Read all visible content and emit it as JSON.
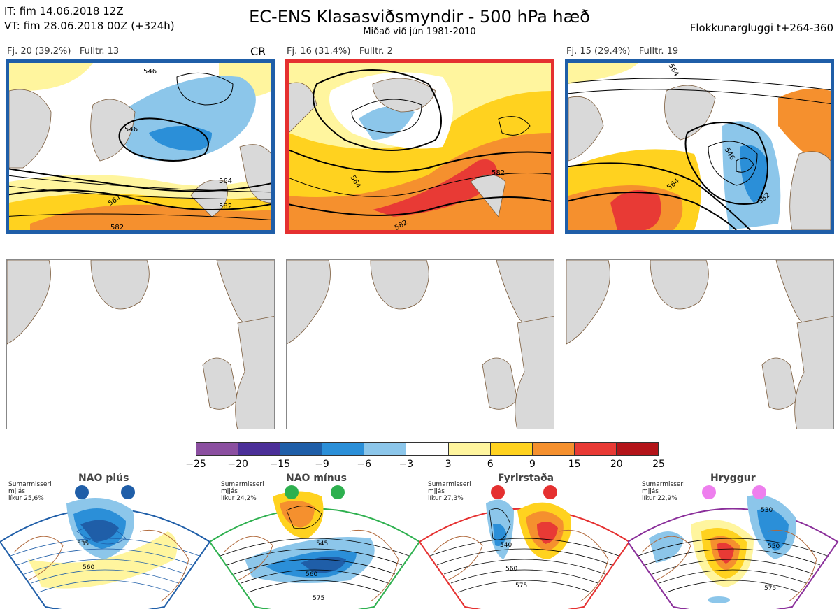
{
  "header": {
    "it_line": "IT: fim 14.06.2018 12Z",
    "vt_line": "VT: fim 28.06.2018 00Z  (+324h)",
    "title": "EC-ENS Klasasviðsmyndir - 500 hPa hæð",
    "subtitle": "Miðað við jún 1981-2010",
    "window": "Flokkunargluggi t+264-360"
  },
  "clusters": [
    {
      "label": "Fj. 20 (39.2%)",
      "rep": "Fulltr. 13",
      "tag": "CR",
      "frame_color": "#1f5ea8",
      "contour_labels": [
        "546",
        "546",
        "564",
        "564",
        "582",
        "582"
      ]
    },
    {
      "label": "Fj. 16 (31.4%)",
      "rep": "Fulltr. 2",
      "tag": "",
      "frame_color": "#e53030",
      "contour_labels": [
        "564",
        "582",
        "582"
      ]
    },
    {
      "label": "Fj. 15 (29.4%)",
      "rep": "Fulltr. 19",
      "tag": "",
      "frame_color": "#1f5ea8",
      "contour_labels": [
        "546",
        "564",
        "564",
        "582"
      ]
    }
  ],
  "colorbar": {
    "colors": [
      "#8b4fa0",
      "#4b2f98",
      "#1f5ea8",
      "#2b8fd8",
      "#8cc6ea",
      "#ffffff",
      "#fff59e",
      "#ffd21f",
      "#f5902e",
      "#e83a35",
      "#b31419"
    ],
    "ticks": [
      "−25",
      "−20",
      "−15",
      "−9",
      "−6",
      "−3",
      "3",
      "6",
      "9",
      "15",
      "20",
      "25"
    ]
  },
  "regimes": [
    {
      "name": "NAO plús",
      "season": "Sumarmisseri",
      "method": "mjjás",
      "prob": "líkur 25,6%",
      "dot_color": "#1f5ea8",
      "frame_color": "#1f5ea8",
      "contour_labels": [
        "535",
        "560"
      ]
    },
    {
      "name": "NAO mínus",
      "season": "Sumarmisseri",
      "method": "mjjás",
      "prob": "líkur 24,2%",
      "dot_color": "#2eb04f",
      "frame_color": "#2eb04f",
      "contour_labels": [
        "545",
        "560",
        "575"
      ]
    },
    {
      "name": "Fyrirstaða",
      "season": "Sumarmisseri",
      "method": "mjjás",
      "prob": "líkur 27,3%",
      "dot_color": "#e53030",
      "frame_color": "#e53030",
      "contour_labels": [
        "540",
        "560",
        "575"
      ]
    },
    {
      "name": "Hryggur",
      "season": "Sumarmisseri",
      "method": "mjjás",
      "prob": "líkur 22,9%",
      "dot_color": "#ee7fee",
      "frame_color": "#8a2e9a",
      "contour_labels": [
        "530",
        "550",
        "575"
      ]
    }
  ]
}
